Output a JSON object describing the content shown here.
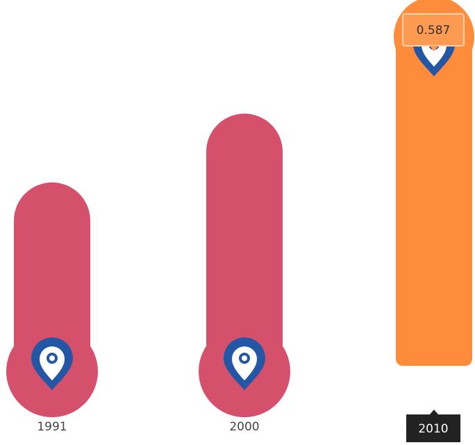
{
  "chart_data": {
    "type": "bar",
    "categories": [
      "1991",
      "2000",
      "2010"
    ],
    "values": [
      0.33,
      0.43,
      0.587
    ],
    "color": "#d5506a",
    "highlight_color": "#ff8c3a",
    "highlight_index": 2
  }
}
